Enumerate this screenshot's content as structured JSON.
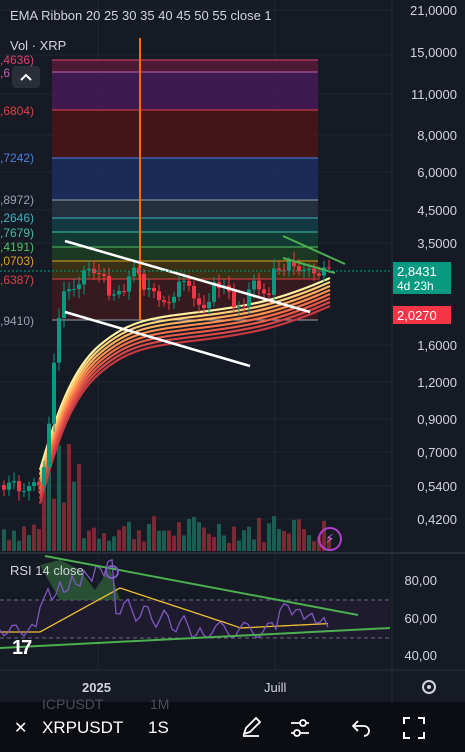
{
  "legend": {
    "ema_title": "EMA Ribbon 20 25 30 35 40 45 50 55 close 1",
    "vol_title": "Vol · XRP",
    "rsi_title": "RSI 14 close"
  },
  "price_axis": [
    "21,0000",
    "15,0000",
    "11,0000",
    "8,0000",
    "6,0000",
    "4,5000",
    "3,5000",
    "1,6000",
    "1,2000",
    "0,9000",
    "0,7000",
    "0,5400",
    "0,4200"
  ],
  "fib_labels": [
    {
      "text": ",4636)",
      "color": "#e04070"
    },
    {
      "text": ",6",
      "color": "#c060b0"
    },
    {
      "text": ",6804)",
      "color": "#e04040"
    },
    {
      "text": ",7242)",
      "color": "#4a80e0"
    },
    {
      "text": ",8972)",
      "color": "#9aa0b0"
    },
    {
      "text": ",2646)",
      "color": "#40b0c0"
    },
    {
      "text": ",7679)",
      "color": "#40c0a0"
    },
    {
      "text": ",4191)",
      "color": "#50c060"
    },
    {
      "text": ",0703)",
      "color": "#e0a020"
    },
    {
      "text": ",6387)",
      "color": "#e04040"
    },
    {
      "text": ",9410)",
      "color": "#9aa0b0"
    }
  ],
  "price_tags": {
    "current_price": "2,8431",
    "countdown": "4d 23h",
    "ema_price": "2,0270",
    "current_color": "#089981",
    "ema_color": "#f23645"
  },
  "rsi_axis": [
    "80,00",
    "60,00",
    "40,00"
  ],
  "time_axis": {
    "year_label": "2025",
    "month_label": "Juill"
  },
  "toolbar": {
    "symbol": "XRPUSDT",
    "symbol_ghost": "ICPUSDT",
    "interval": "1S",
    "interval_ghost": "1M",
    "icons": [
      "pen-icon",
      "sliders-icon",
      "undo-icon",
      "fullscreen-icon"
    ]
  },
  "colors": {
    "background": "#161a25",
    "up": "#089981",
    "down": "#f23645",
    "rsi_line": "#7e57c2",
    "rsi_ma": "#f0c030",
    "trendline": "#4caf50"
  }
}
